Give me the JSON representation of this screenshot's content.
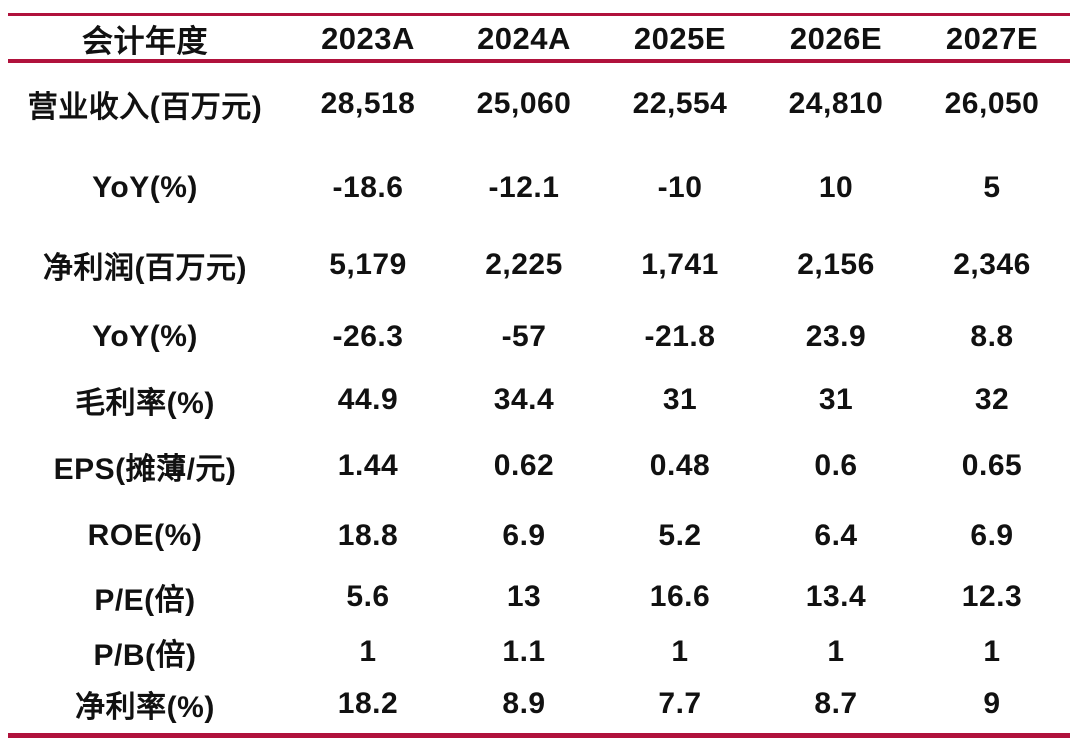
{
  "colors": {
    "accent": "#B0123C",
    "text": "#111111",
    "background": "#FFFFFF"
  },
  "chart_data": {
    "type": "table",
    "title": "",
    "columns": [
      "会计年度",
      "2023A",
      "2024A",
      "2025E",
      "2026E",
      "2027E"
    ],
    "rows": [
      {
        "label": "营业收入(百万元)",
        "values": [
          "28,518",
          "25,060",
          "22,554",
          "24,810",
          "26,050"
        ]
      },
      {
        "label": "YoY(%)",
        "values": [
          "-18.6",
          "-12.1",
          "-10",
          "10",
          "5"
        ]
      },
      {
        "label": "净利润(百万元)",
        "values": [
          "5,179",
          "2,225",
          "1,741",
          "2,156",
          "2,346"
        ]
      },
      {
        "label": "YoY(%)",
        "values": [
          "-26.3",
          "-57",
          "-21.8",
          "23.9",
          "8.8"
        ]
      },
      {
        "label": "毛利率(%)",
        "values": [
          "44.9",
          "34.4",
          "31",
          "31",
          "32"
        ]
      },
      {
        "label": "EPS(摊薄/元)",
        "values": [
          "1.44",
          "0.62",
          "0.48",
          "0.6",
          "0.65"
        ]
      },
      {
        "label": "ROE(%)",
        "values": [
          "18.8",
          "6.9",
          "5.2",
          "6.4",
          "6.9"
        ]
      },
      {
        "label": "P/E(倍)",
        "values": [
          "5.6",
          "13",
          "16.6",
          "13.4",
          "12.3"
        ]
      },
      {
        "label": "P/B(倍)",
        "values": [
          "1",
          "1.1",
          "1",
          "1",
          "1"
        ]
      },
      {
        "label": "净利率(%)",
        "values": [
          "18.2",
          "8.9",
          "7.7",
          "8.7",
          "9"
        ]
      }
    ]
  }
}
